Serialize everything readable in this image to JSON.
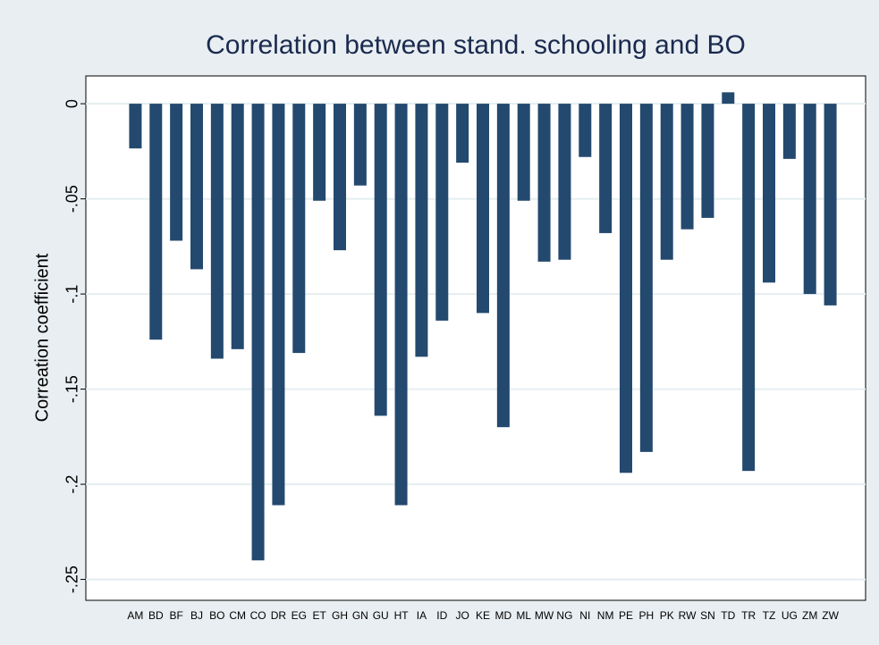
{
  "chart_data": {
    "type": "bar",
    "title": "Correlation between stand. schooling and BO",
    "y_label": "Correation coefficient",
    "categories": [
      "AM",
      "BD",
      "BF",
      "BJ",
      "BO",
      "CM",
      "CO",
      "DR",
      "EG",
      "ET",
      "GH",
      "GN",
      "GU",
      "HT",
      "IA",
      "ID",
      "JO",
      "KE",
      "MD",
      "ML",
      "MW",
      "NG",
      "NI",
      "NM",
      "PE",
      "PH",
      "PK",
      "RW",
      "SN",
      "TD",
      "TR",
      "TZ",
      "UG",
      "ZM",
      "ZW"
    ],
    "values": [
      -0.0235,
      -0.124,
      -0.072,
      -0.087,
      -0.134,
      -0.129,
      -0.24,
      -0.211,
      -0.131,
      -0.051,
      -0.077,
      -0.043,
      -0.164,
      -0.211,
      -0.133,
      -0.114,
      -0.031,
      -0.11,
      -0.17,
      -0.051,
      -0.083,
      -0.082,
      -0.028,
      -0.068,
      -0.194,
      -0.183,
      -0.082,
      -0.066,
      -0.06,
      0.006,
      -0.193,
      -0.094,
      -0.029,
      -0.1,
      -0.106
    ],
    "color": "#24496f",
    "ylim": [
      -0.261,
      0.0146
    ],
    "yticks": [
      {
        "value": -0.25,
        "label": "-.25"
      },
      {
        "value": -0.2,
        "label": "-.2"
      },
      {
        "value": -0.15,
        "label": "-.15"
      },
      {
        "value": -0.1,
        "label": "-.1"
      },
      {
        "value": -0.05,
        "label": "-.05"
      },
      0
    ],
    "grid": true
  }
}
